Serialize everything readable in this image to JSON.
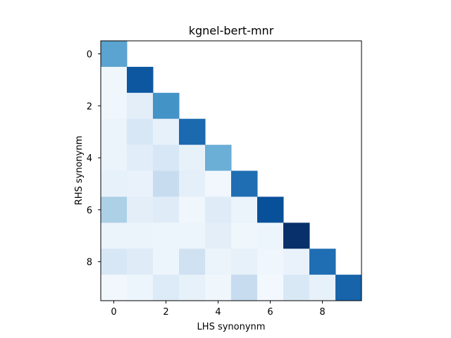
{
  "chart_data": {
    "type": "heatmap",
    "title": "kgnel-bert-mnr",
    "xlabel": "LHS synonynm",
    "ylabel": "RHS synonynm",
    "xticks": [
      0,
      2,
      4,
      6,
      8
    ],
    "yticks": [
      0,
      2,
      4,
      6,
      8
    ],
    "rows": 10,
    "cols": 10,
    "colormap": "Blues",
    "vmin": 0.0,
    "vmax": 1.0,
    "values": [
      [
        0.55,
        null,
        null,
        null,
        null,
        null,
        null,
        null,
        null,
        null
      ],
      [
        0.04,
        0.85,
        null,
        null,
        null,
        null,
        null,
        null,
        null,
        null
      ],
      [
        0.04,
        0.1,
        0.62,
        null,
        null,
        null,
        null,
        null,
        null,
        null
      ],
      [
        0.06,
        0.16,
        0.08,
        0.78,
        null,
        null,
        null,
        null,
        null,
        null
      ],
      [
        0.06,
        0.11,
        0.16,
        0.08,
        0.5,
        null,
        null,
        null,
        null,
        null
      ],
      [
        0.08,
        0.07,
        0.24,
        0.09,
        0.03,
        0.76,
        null,
        null,
        null,
        null
      ],
      [
        0.33,
        0.1,
        0.12,
        0.04,
        0.12,
        0.06,
        0.88,
        null,
        null,
        null
      ],
      [
        0.06,
        0.06,
        0.05,
        0.05,
        0.1,
        0.04,
        0.05,
        1.0,
        null,
        null
      ],
      [
        0.16,
        0.12,
        0.05,
        0.2,
        0.06,
        0.08,
        0.04,
        0.07,
        0.76,
        null
      ],
      [
        0.03,
        0.05,
        0.13,
        0.08,
        0.04,
        0.24,
        0.02,
        0.15,
        0.08,
        0.8
      ]
    ]
  }
}
